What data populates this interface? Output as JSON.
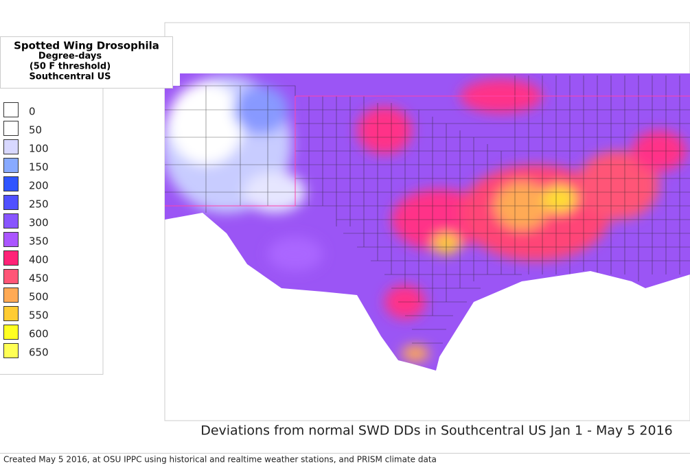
{
  "header": {
    "title": "Spotted Wing Drosophila",
    "line2": "Degree-days",
    "line3": "(50 F threshold)",
    "line4": "Southcentral US"
  },
  "legend": [
    {
      "value": 0,
      "color": "#ffffff"
    },
    {
      "value": 50,
      "color": "#ffffff"
    },
    {
      "value": 100,
      "color": "#d8d8ff"
    },
    {
      "value": 150,
      "color": "#88aaff"
    },
    {
      "value": 200,
      "color": "#2f55ff"
    },
    {
      "value": 250,
      "color": "#5050ff"
    },
    {
      "value": 300,
      "color": "#8855ff"
    },
    {
      "value": 350,
      "color": "#aa55ff"
    },
    {
      "value": 400,
      "color": "#ff2277"
    },
    {
      "value": 450,
      "color": "#ff5577"
    },
    {
      "value": 500,
      "color": "#ffaa55"
    },
    {
      "value": 550,
      "color": "#ffcc33"
    },
    {
      "value": 600,
      "color": "#ffff22"
    },
    {
      "value": 650,
      "color": "#ffff55"
    }
  ],
  "caption": "Deviations from normal SWD DDs in Southcentral US Jan 1 - May 5 2016",
  "footer": "Created May 5 2016, at OSU IPPC using  historical and  realtime weather stations, and PRISM climate data"
}
